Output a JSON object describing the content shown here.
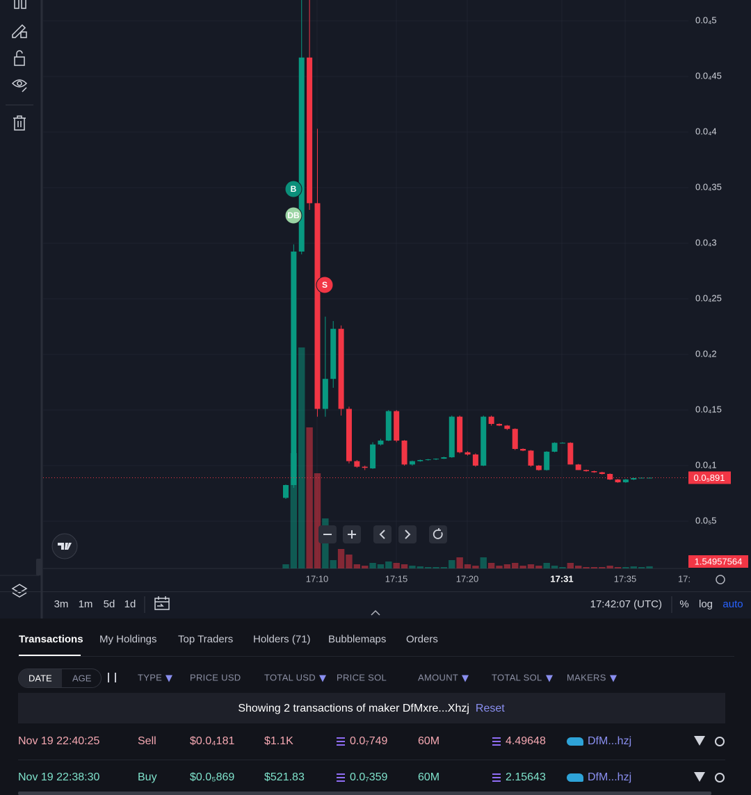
{
  "chart_data": {
    "type": "candlestick",
    "ylim": [
      7.5e-07,
      5.1875e-05
    ],
    "yticks": [
      {
        "value": 5e-05,
        "label": "0.0₄5"
      },
      {
        "value": 4.5e-05,
        "label": "0.0₄45"
      },
      {
        "value": 4e-05,
        "label": "0.0₄4"
      },
      {
        "value": 3.5e-05,
        "label": "0.0₄35"
      },
      {
        "value": 3e-05,
        "label": "0.0₄3"
      },
      {
        "value": 2.5e-05,
        "label": "0.0₄25"
      },
      {
        "value": 2e-05,
        "label": "0.0₄2"
      },
      {
        "value": 1.5e-05,
        "label": "0.0₄15"
      },
      {
        "value": 1e-05,
        "label": "0.0₄1"
      },
      {
        "value": 5e-06,
        "label": "0.0₅5"
      }
    ],
    "grid": true,
    "colors": {
      "up": "#089981",
      "down": "#f23645",
      "current": "#f23645"
    },
    "x_labels": [
      "17:10",
      "17:15",
      "17:20",
      "17:31",
      "17:35",
      "17:"
    ],
    "candles": [
      [
        7.1e-06,
        8.3e-06,
        7e-06,
        8.25e-06
      ],
      [
        8.25e-06,
        2.99e-05,
        8e-06,
        2.925e-05
      ],
      [
        2.925e-05,
        5.19e-05,
        2.9e-05,
        4.67e-05
      ],
      [
        4.67e-05,
        5.19e-05,
        3.3e-05,
        3.36e-05
      ],
      [
        3.36e-05,
        4.03e-05,
        1.44e-05,
        1.51e-05
      ],
      [
        1.51e-05,
        2.34e-05,
        1.44e-05,
        1.78e-05
      ],
      [
        1.78e-05,
        2.3e-05,
        1.7e-05,
        2.23e-05
      ],
      [
        2.23e-05,
        2.26e-05,
        1.45e-05,
        1.51e-05
      ],
      [
        1.51e-05,
        1.53e-05,
        1.02e-05,
        1.04e-05
      ],
      [
        1.04e-05,
        1.05e-05,
        9.8e-06,
        9.9e-06
      ],
      [
        9.9e-06,
        1e-05,
        9.6e-06,
        9.8e-06
      ],
      [
        9.75e-06,
        1.21e-05,
        9.7e-06,
        1.19e-05
      ],
      [
        1.19e-05,
        1.24e-05,
        1.18e-05,
        1.225e-05
      ],
      [
        1.225e-05,
        1.5e-05,
        1.22e-05,
        1.49e-05
      ],
      [
        1.49e-05,
        1.5e-05,
        1.21e-05,
        1.225e-05
      ],
      [
        1.225e-05,
        1.23e-05,
        1e-05,
        1.01e-05
      ],
      [
        1.01e-05,
        1.045e-05,
        1e-05,
        1.04e-05
      ],
      [
        1.04e-05,
        1.055e-05,
        1.035e-05,
        1.05e-05
      ],
      [
        1.05e-05,
        1.06e-05,
        1.045e-05,
        1.056e-05
      ],
      [
        1.056e-05,
        1.065e-05,
        1.05e-05,
        1.062e-05
      ],
      [
        1.062e-05,
        1.08e-05,
        1.06e-05,
        1.075e-05
      ],
      [
        1.075e-05,
        1.45e-05,
        1.07e-05,
        1.44e-05
      ],
      [
        1.44e-05,
        1.45e-05,
        1.11e-05,
        1.12e-05
      ],
      [
        1.12e-05,
        1.13e-05,
        1.09e-05,
        1.1e-05
      ],
      [
        1.1e-05,
        1.11e-05,
        9.9e-06,
        1e-05
      ],
      [
        1e-05,
        1.45e-05,
        9.95e-06,
        1.44e-05
      ],
      [
        1.44e-05,
        1.45e-05,
        1.36e-05,
        1.375e-05
      ],
      [
        1.375e-05,
        1.38e-05,
        1.355e-05,
        1.36e-05
      ],
      [
        1.36e-05,
        1.365e-05,
        1.32e-05,
        1.33e-05
      ],
      [
        1.33e-05,
        1.335e-05,
        1.14e-05,
        1.15e-05
      ],
      [
        1.15e-05,
        1.155e-05,
        1.13e-05,
        1.135e-05
      ],
      [
        1.135e-05,
        1.14e-05,
        9.9e-06,
        1e-05
      ],
      [
        1e-05,
        1.005e-05,
        9.55e-06,
        9.6e-06
      ],
      [
        9.6e-06,
        1.13e-05,
        9.55e-06,
        1.125e-05
      ],
      [
        1.125e-05,
        1.21e-05,
        1.12e-05,
        1.205e-05
      ],
      [
        1.205e-05,
        1.21e-05,
        1.2e-05,
        1.205e-05
      ],
      [
        1.205e-05,
        1.21e-05,
        1.01e-05,
        1.01e-05
      ],
      [
        1.01e-05,
        1.015e-05,
        9.6e-06,
        9.6e-06
      ],
      [
        9.6e-06,
        9.65e-06,
        9.45e-06,
        9.5e-06
      ],
      [
        9.5e-06,
        9.55e-06,
        9.35e-06,
        9.4e-06
      ],
      [
        9.4e-06,
        9.45e-06,
        9.2e-06,
        9.25e-06
      ],
      [
        9.25e-06,
        9.3e-06,
        8.7e-06,
        8.75e-06
      ],
      [
        8.75e-06,
        8.8e-06,
        8.45e-06,
        8.5e-06
      ],
      [
        8.5e-06,
        8.8e-06,
        8.45e-06,
        8.75e-06
      ],
      [
        8.75e-06,
        8.9e-06,
        8.7e-06,
        8.88e-06
      ],
      [
        8.88e-06,
        8.92e-06,
        8.86e-06,
        8.91e-06
      ],
      [
        8.91e-06,
        8.92e-06,
        8.9e-06,
        8.91e-06
      ]
    ],
    "volumes": [
      3,
      83,
      159,
      101.5,
      68.5,
      36,
      6,
      14,
      10,
      3,
      2,
      4,
      3,
      5,
      4,
      3,
      2,
      1.5,
      1,
      1,
      1,
      6,
      8,
      3,
      2,
      8,
      4,
      2,
      3,
      4,
      2,
      3,
      2,
      4,
      2,
      1,
      4,
      2,
      1,
      1,
      1,
      2,
      1,
      1,
      1.5,
      1,
      1.54957564
    ],
    "last_price": {
      "value": 8.91e-06,
      "label": "0.0₅891"
    },
    "markers": [
      "B",
      "DB",
      "S"
    ]
  },
  "toolbar": {
    "intervals": [
      "3m",
      "1m",
      "5d",
      "1d"
    ],
    "clock": "17:42:07 (UTC)",
    "scale_options": [
      "%",
      "log",
      "auto"
    ]
  },
  "tabs": [
    "Transactions",
    "My Holdings",
    "Top Traders",
    "Holders (71)",
    "Bubblemaps",
    "Orders"
  ],
  "table": {
    "sort_options": [
      "DATE",
      "AGE"
    ],
    "headers": [
      "TYPE",
      "PRICE USD",
      "TOTAL USD",
      "PRICE SOL",
      "AMOUNT",
      "TOTAL SOL",
      "MAKERS"
    ],
    "banner": "Showing 2 transactions of maker DfMxre...Xhzj",
    "reset": "Reset",
    "rows": [
      [
        "Nov 19 22:40:25",
        "Sell",
        "$0.0₄181",
        "$1.1K",
        "0.0₇749",
        "60M",
        "4.49648",
        "DfM...hzj"
      ],
      [
        "Nov 19 22:38:30",
        "Buy",
        "$0.0₅869",
        "$521.83",
        "0.0₇359",
        "60M",
        "2.15643",
        "DfM...hzj"
      ]
    ]
  }
}
